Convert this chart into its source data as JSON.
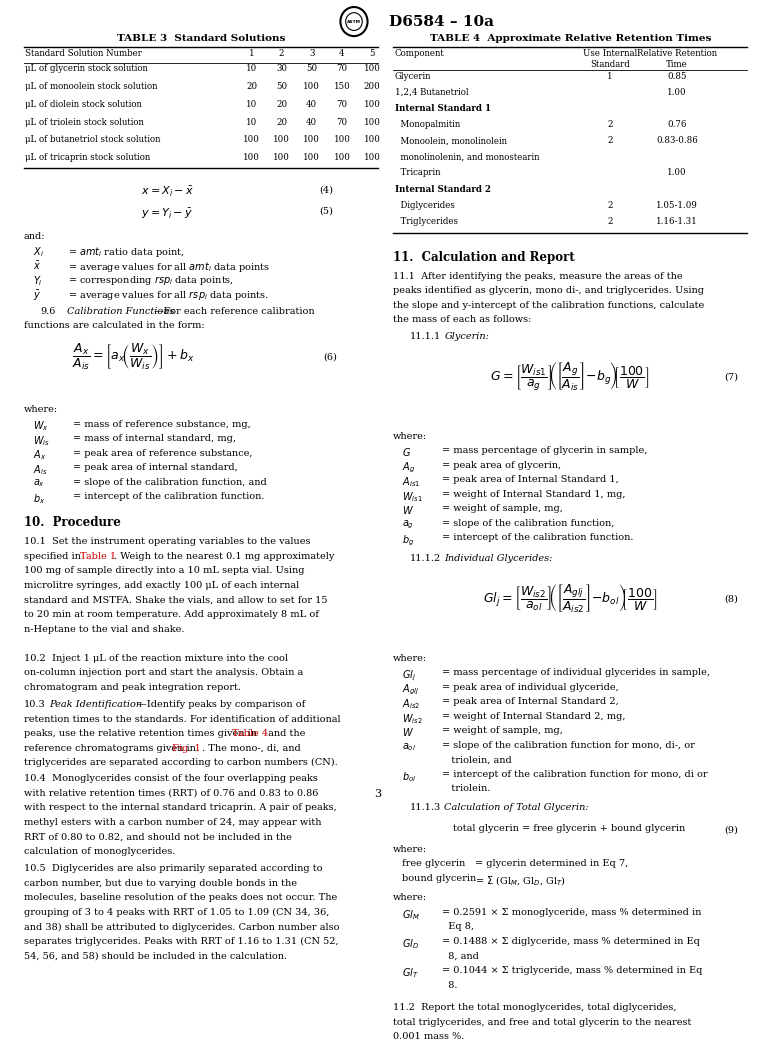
{
  "page_width": 7.78,
  "page_height": 10.41,
  "bg_color": "#ffffff",
  "header_text": "D6584 – 10a",
  "table3_title": "TABLE 3  Standard Solutions",
  "table4_title": "TABLE 4  Approximate Relative Retention Times",
  "table3_headers": [
    "Standard Solution Number",
    "1",
    "2",
    "3",
    "4",
    "5"
  ],
  "table3_rows": [
    [
      "μL of glycerin stock solution",
      "10",
      "30",
      "50",
      "70",
      "100"
    ],
    [
      "μL of monoolein stock solution",
      "20",
      "50",
      "100",
      "150",
      "200"
    ],
    [
      "μL of diolein stock solution",
      "10",
      "20",
      "40",
      "70",
      "100"
    ],
    [
      "μL of triolein stock solution",
      "10",
      "20",
      "40",
      "70",
      "100"
    ],
    [
      "μL of butanetriol stock solution",
      "100",
      "100",
      "100",
      "100",
      "100"
    ],
    [
      "μL of tricaprin stock solution",
      "100",
      "100",
      "100",
      "100",
      "100"
    ]
  ],
  "table4_headers": [
    "Component",
    "Use Internal\nStandard",
    "Relative Retention\nTime"
  ],
  "table4_rows": [
    [
      "Glycerin",
      "1",
      "0.85"
    ],
    [
      "1,2,4 Butanetriol",
      "",
      "1.00"
    ],
    [
      "Internal Standard 1",
      "",
      ""
    ],
    [
      "  Monopalmitin",
      "2",
      "0.76"
    ],
    [
      "  Monoolein, monolinolein",
      "2",
      "0.83-0.86"
    ],
    [
      "  monolinolenin, and monostearin",
      "",
      ""
    ],
    [
      "  Tricaprin",
      "",
      "1.00"
    ],
    [
      "Internal Standard 2",
      "",
      ""
    ],
    [
      "  Diglycerides",
      "2",
      "1.05-1.09"
    ],
    [
      "  Triglycerides",
      "2",
      "1.16-1.31"
    ]
  ],
  "footer_page": "3",
  "red_color": "#cc0000",
  "text_color": "#000000",
  "table_line_color": "#000000"
}
